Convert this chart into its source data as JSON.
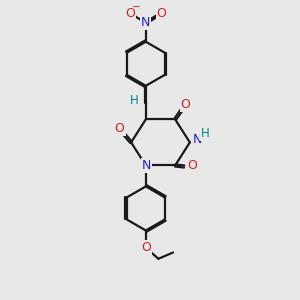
{
  "bg_color": "#e8e8e8",
  "bond_color": "#1a1a1a",
  "nitrogen_color": "#2222cc",
  "oxygen_color": "#cc2222",
  "hydrogen_color": "#008888",
  "lw": 1.6,
  "dbo": 0.055,
  "fs": 8.5,
  "xlim": [
    0,
    10
  ],
  "ylim": [
    0,
    14
  ]
}
